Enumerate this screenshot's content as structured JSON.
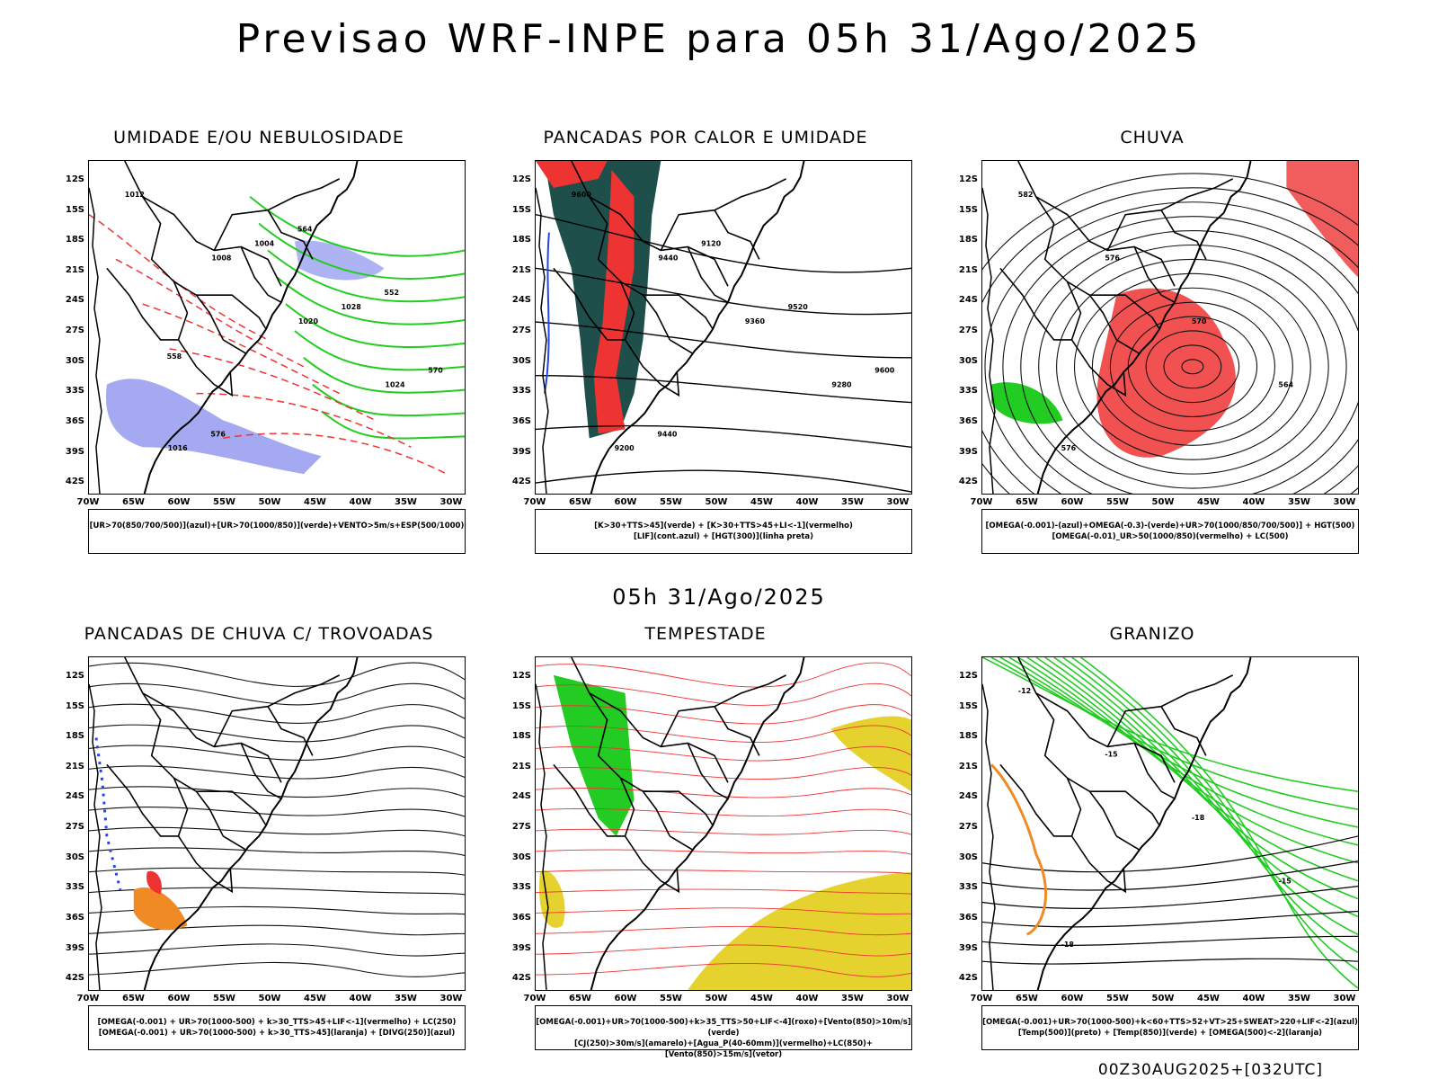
{
  "title": "Previsao WRF-INPE  para 05h 31/Ago/2025",
  "mid_title": "05h 31/Ago/2025",
  "footer": "00Z30AUG2025+[032UTC]",
  "lat_labels": [
    "12S",
    "15S",
    "18S",
    "21S",
    "24S",
    "27S",
    "30S",
    "33S",
    "36S",
    "39S",
    "42S"
  ],
  "lon_labels": [
    "70W",
    "65W",
    "60W",
    "55W",
    "50W",
    "45W",
    "40W",
    "35W",
    "30W"
  ],
  "colors": {
    "blue": "#2244ee",
    "green": "#22cc22",
    "red": "#ee3333",
    "orange": "#f08a24",
    "yellow": "#e6d22e",
    "shade_dark": "#1f4f4a",
    "shade_light": "#9aa0f0"
  },
  "panels": [
    {
      "title": "UMIDADE E/OU NEBULOSIDADE",
      "legend": [
        "[UR>70(850/700/500)](azul)+[UR>70(1000/850)](verde)+VENTO>5m/s+ESP(500/1000)"
      ],
      "contour_labels": [
        "1012",
        "1008",
        "1020",
        "1024",
        "1016",
        "1004",
        "1028",
        "570",
        "576",
        "564",
        "552",
        "558"
      ]
    },
    {
      "title": "PANCADAS POR CALOR E UMIDADE",
      "legend": [
        "[K>30+TTS>45](verde) + [K>30+TTS>45+LI<-1](vermelho)",
        "[LIF](cont.azul) + [HGT(300)](linha preta)"
      ],
      "contour_labels": [
        "9600",
        "9440",
        "9360",
        "9280",
        "9200",
        "9120",
        "9520",
        "9600",
        "9440"
      ]
    },
    {
      "title": "CHUVA",
      "legend": [
        "[OMEGA(-0.001)-(azul)+OMEGA(-0.3)-(verde)+UR>70(1000/850/700/500)] + HGT(500)",
        "[OMEGA(-0.01)_UR>50(1000/850)(vermelho) + LC(500)"
      ],
      "contour_labels": [
        "582",
        "576",
        "570",
        "564",
        "576"
      ]
    },
    {
      "title": "PANCADAS DE CHUVA C/ TROVOADAS",
      "legend": [
        "[OMEGA(-0.001) + UR>70(1000-500) + k>30_TTS>45+LIF<-1](vermelho) + LC(250)",
        "[OMEGA(-0.001) + UR>70(1000-500) + k>30_TTS>45](laranja) + [DIVG(250)](azul)"
      ],
      "contour_labels": []
    },
    {
      "title": "TEMPESTADE",
      "legend": [
        "[OMEGA(-0.001)+UR>70(1000-500)+k>35_TTS>50+LIF<-4](roxo)+[Vento(850)>10m/s](verde)",
        "[CJ(250)>30m/s](amarelo)+[Agua_P(40-60mm)](vermelho)+LC(850)+[Vento(850)>15m/s](vetor)"
      ],
      "contour_labels": []
    },
    {
      "title": "GRANIZO",
      "legend": [
        "[OMEGA(-0.001)+UR>70(1000-500)+k<60+TTS>52+VT>25+SWEAT>220+LIF<-2](azul)",
        "[Temp(500)](preto) + [Temp(850)](verde) + [OMEGA(500)<-2](laranja)"
      ],
      "contour_labels": [
        "-12",
        "-15",
        "-18",
        "-15",
        "-18"
      ]
    }
  ]
}
